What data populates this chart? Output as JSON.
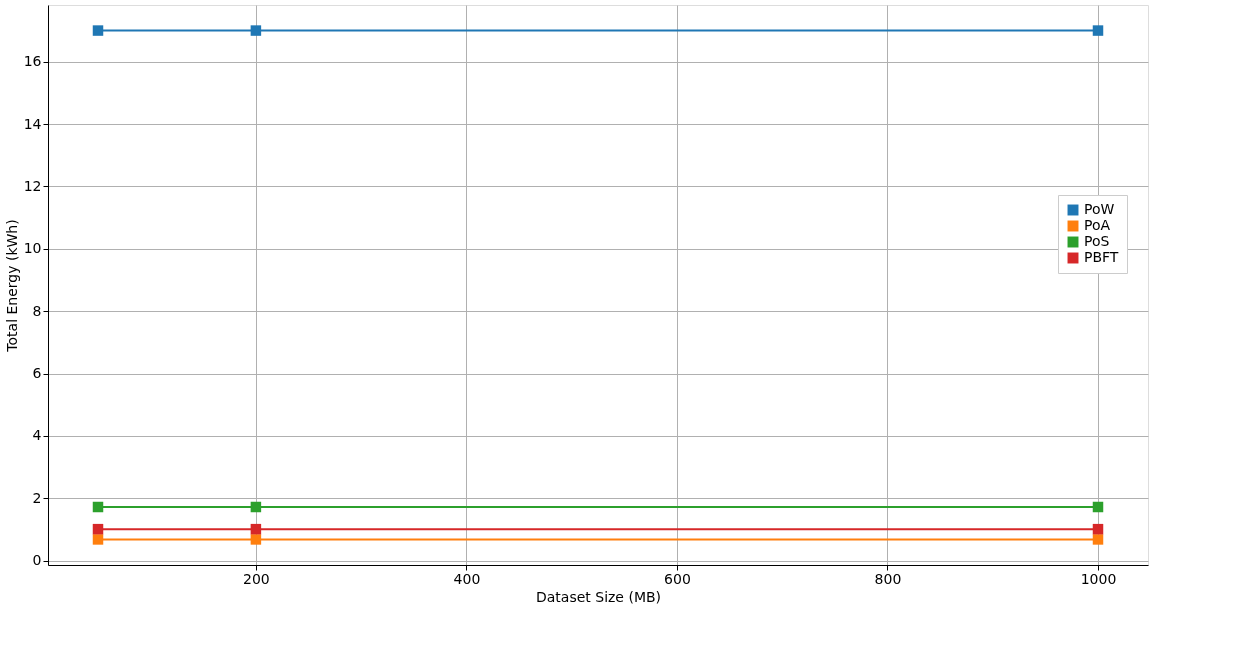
{
  "chart_data": {
    "type": "line",
    "xlabel": "Dataset Size (MB)",
    "ylabel": "Total Energy (kWh)",
    "x": [
      50,
      200,
      1000
    ],
    "series": [
      {
        "name": "PoW",
        "color": "#1f77b4",
        "values": [
          17.0,
          17.0,
          17.0
        ]
      },
      {
        "name": "PoA",
        "color": "#ff7f0e",
        "values": [
          0.68,
          0.68,
          0.68
        ]
      },
      {
        "name": "PoS",
        "color": "#2ca02c",
        "values": [
          1.72,
          1.72,
          1.72
        ]
      },
      {
        "name": "PBFT",
        "color": "#d62728",
        "values": [
          1.01,
          1.01,
          1.01
        ]
      }
    ],
    "xlim": [
      2.5,
      1047.5
    ],
    "xticks": [
      200,
      400,
      600,
      800,
      1000
    ],
    "ylim": [
      -0.14,
      17.82
    ],
    "yticks": [
      0,
      2,
      4,
      6,
      8,
      10,
      12,
      14,
      16
    ],
    "grid": true,
    "legend": "right",
    "marker": "square",
    "line_style": "solid"
  }
}
